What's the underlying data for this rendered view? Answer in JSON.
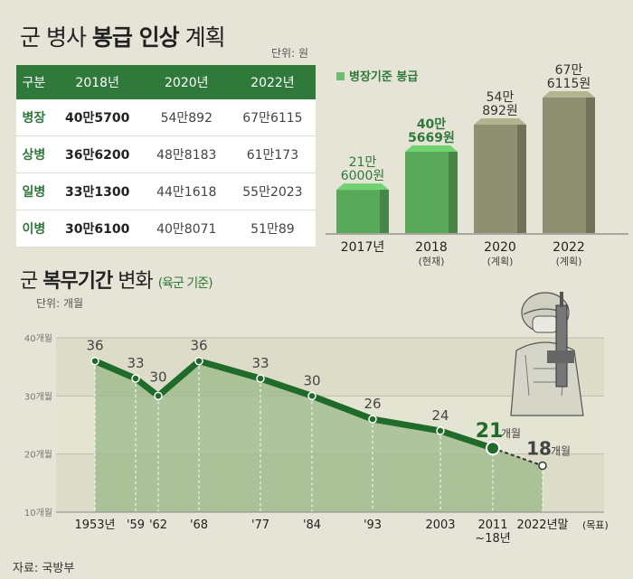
{
  "pay": {
    "title_prefix": "군 병사 ",
    "title_bold": "봉급 인상",
    "title_suffix": " 계획",
    "unit": "단위: 원",
    "headers": [
      "구분",
      "2018년",
      "2020년",
      "2022년"
    ],
    "rows": [
      {
        "rank": "병장",
        "y2018": "40만5700",
        "y2020": "54만892",
        "y2022": "67만6115"
      },
      {
        "rank": "상병",
        "y2018": "36만6200",
        "y2020": "48만8183",
        "y2022": "61만173"
      },
      {
        "rank": "일병",
        "y2018": "33만1300",
        "y2020": "44만1618",
        "y2022": "55만2023"
      },
      {
        "rank": "이병",
        "y2018": "30만6100",
        "y2020": "40만8071",
        "y2022": "51만89"
      }
    ]
  },
  "chart_data": [
    {
      "type": "bar",
      "legend": "병장기준 봉급",
      "categories": [
        "2017년",
        "2018",
        "2020",
        "2022"
      ],
      "category_notes": [
        "",
        "(현재)",
        "(계획)",
        "(계획)"
      ],
      "values": [
        216000,
        405669,
        540892,
        676115
      ],
      "value_labels": [
        [
          "21만",
          "6000원"
        ],
        [
          "40만",
          "5669원"
        ],
        [
          "54만",
          "892원"
        ],
        [
          "67만",
          "6115원"
        ]
      ],
      "colors": [
        "#5aa85a",
        "#5aa85a",
        "#8f8f72",
        "#8f8f72"
      ]
    },
    {
      "type": "area",
      "title_prefix": "군 ",
      "title_bold": "복무기간",
      "title_suffix": " 변화",
      "subtitle": "(육군 기준)",
      "unit": "단위: 개월",
      "categories": [
        "1953년",
        "'59",
        "'62",
        "'68",
        "'77",
        "'84",
        "'93",
        "2003",
        "2011",
        "2022년말"
      ],
      "category_extra": [
        "",
        "",
        "",
        "",
        "",
        "",
        "",
        "",
        "~18년",
        "(목표)"
      ],
      "values": [
        36,
        33,
        30,
        36,
        33,
        30,
        26,
        24,
        21,
        18
      ],
      "value_suffix": [
        "",
        "",
        "",
        "",
        "",
        "",
        "",
        "",
        "개월",
        "개월"
      ],
      "yticks": [
        "10개월",
        "20개월",
        "30개월",
        "40개월"
      ],
      "ylim": [
        10,
        40
      ]
    }
  ],
  "source": "자료: 국방부"
}
